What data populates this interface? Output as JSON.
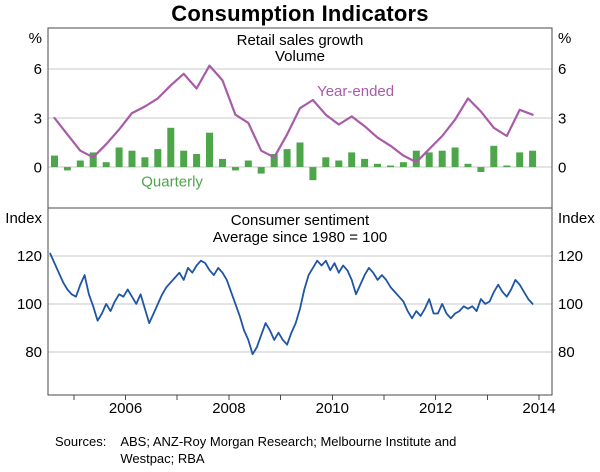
{
  "title": "Consumption Indicators",
  "colors": {
    "year_ended": "#a75ba9",
    "quarterly": "#4ea64b",
    "sentiment": "#1f55a5",
    "grid": "#c8c8c8",
    "frame": "#4a4a4a"
  },
  "x_axis": {
    "min": 2004.5,
    "max": 2014.25,
    "ticks": [
      2005,
      2006,
      2007,
      2008,
      2009,
      2010,
      2011,
      2012,
      2013,
      2014
    ],
    "labels": [
      {
        "text": "2006",
        "x": 2006
      },
      {
        "text": "2008",
        "x": 2008
      },
      {
        "text": "2010",
        "x": 2010
      },
      {
        "text": "2012",
        "x": 2012
      },
      {
        "text": "2014",
        "x": 2014
      }
    ]
  },
  "chart_data": [
    {
      "type": "combo",
      "panel_title": "Retail sales growth",
      "panel_subtitle": "Volume",
      "unit_left": "%",
      "unit_right": "%",
      "ylim": [
        -2.5,
        8.5
      ],
      "yticks": [
        0,
        3,
        6
      ],
      "grid": true,
      "series": [
        {
          "name": "Quarterly",
          "type": "bar",
          "color": "#4ea64b",
          "x_start": 2004.625,
          "x_step": 0.25,
          "values": [
            0.7,
            -0.2,
            0.4,
            0.9,
            0.3,
            1.2,
            1.0,
            0.6,
            1.1,
            2.4,
            1.0,
            0.8,
            2.1,
            0.5,
            -0.2,
            0.4,
            -0.4,
            0.8,
            1.1,
            1.5,
            -0.8,
            0.6,
            0.4,
            0.9,
            0.5,
            0.2,
            0.1,
            0.3,
            1.0,
            0.9,
            1.0,
            1.2,
            0.2,
            -0.3,
            1.3,
            0.1,
            0.9,
            1.0
          ]
        },
        {
          "name": "Year-ended",
          "type": "line",
          "color": "#a75ba9",
          "x_start": 2004.625,
          "x_step": 0.25,
          "values": [
            3.0,
            2.0,
            1.0,
            0.6,
            1.4,
            2.3,
            3.3,
            3.7,
            4.2,
            5.0,
            5.7,
            4.8,
            6.2,
            5.3,
            3.2,
            2.7,
            1.0,
            0.6,
            2.0,
            3.6,
            4.1,
            3.2,
            2.6,
            3.1,
            2.5,
            1.8,
            1.3,
            0.7,
            0.3,
            1.1,
            1.9,
            2.9,
            4.2,
            3.4,
            2.4,
            1.9,
            3.5,
            3.2
          ]
        }
      ],
      "annotations": [
        {
          "text": "Year-ended",
          "x": 2010.45,
          "y": 4.35,
          "color": "#a75ba9"
        },
        {
          "text": "Quarterly",
          "x": 2006.9,
          "y": -1.2,
          "color": "#4ea64b"
        }
      ]
    },
    {
      "type": "line",
      "panel_title": "Consumer sentiment",
      "panel_subtitle": "Average since 1980 = 100",
      "unit_left": "Index",
      "unit_right": "Index",
      "ylim": [
        62,
        140
      ],
      "yticks": [
        80,
        100,
        120
      ],
      "grid": true,
      "series": [
        {
          "name": "Consumer sentiment",
          "type": "line",
          "color": "#1f55a5",
          "x_start": 2004.542,
          "x_step": 0.0833333,
          "values": [
            121,
            117,
            113,
            109,
            106,
            104,
            103,
            108,
            112,
            104,
            99,
            93,
            96,
            100,
            97,
            101,
            104,
            103,
            106,
            103,
            100,
            104,
            98,
            92,
            96,
            100,
            104,
            107,
            109,
            111,
            113,
            110,
            115,
            113,
            116,
            118,
            117,
            114,
            112,
            115,
            113,
            110,
            105,
            100,
            95,
            89,
            85,
            79,
            82,
            87,
            92,
            89,
            85,
            88,
            85,
            83,
            88,
            92,
            98,
            106,
            112,
            115,
            118,
            116,
            118,
            114,
            117,
            113,
            116,
            114,
            110,
            104,
            108,
            112,
            115,
            113,
            110,
            112,
            110,
            107,
            105,
            103,
            101,
            97,
            94,
            97,
            95,
            98,
            102,
            96,
            96,
            100,
            96,
            94,
            96,
            97,
            99,
            98,
            99,
            97,
            102,
            100,
            101,
            105,
            108,
            105,
            103,
            106,
            110,
            108,
            105,
            102,
            100
          ]
        }
      ],
      "annotations": []
    }
  ],
  "footer": {
    "sources_label": "Sources:",
    "sources_text": "ABS; ANZ-Roy Morgan Research; Melbourne Institute and Westpac; RBA"
  }
}
